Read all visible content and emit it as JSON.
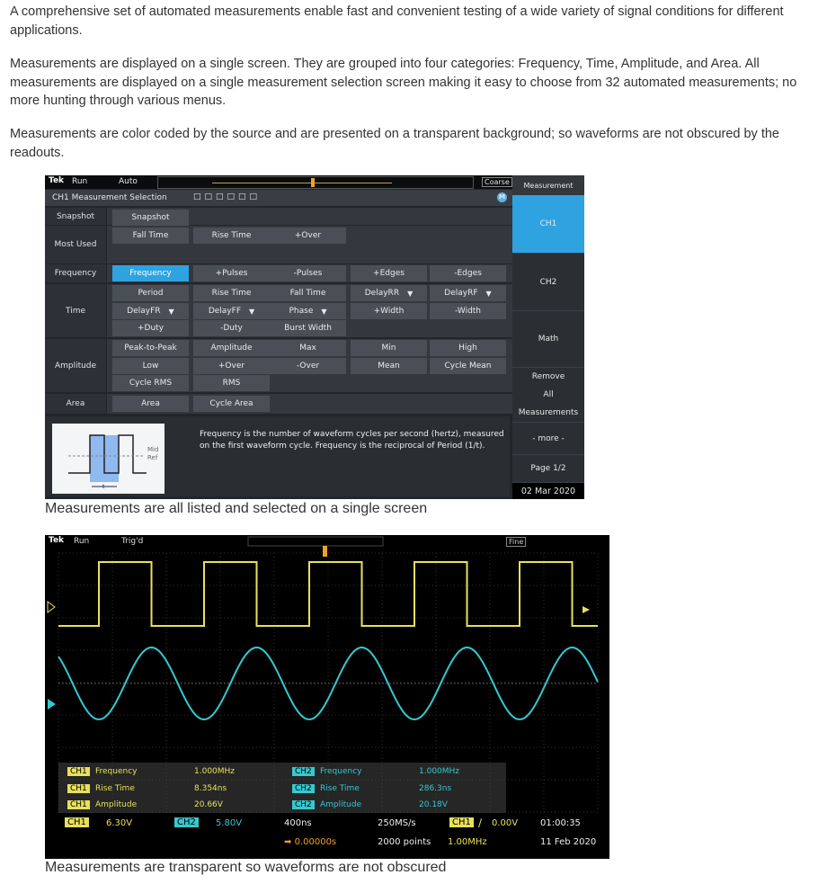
{
  "paragraphs": [
    "A comprehensive set of automated measurements enable fast and convenient testing of a wide variety of signal conditions for different applications.",
    "Measurements are displayed on a single screen. They are grouped into four categories: Frequency, Time, Amplitude, and Area. All measurements are displayed on a single measurement selection screen making it easy to choose from 32 automated measurements; no more hunting through various menus.",
    "Measurements are color coded by the source and are presented on a transparent background; so waveforms are not obscured by the readouts."
  ],
  "screen1": {
    "logo": "Tek",
    "run": "Run",
    "mode": "Auto",
    "coarse": "Coarse",
    "title": "CH1 Measurement Selection",
    "badge": "M",
    "categories": [
      {
        "label": "Snapshot",
        "rows": [
          [
            {
              "label": "Snapshot"
            }
          ]
        ]
      },
      {
        "label": "Most Used",
        "rows": [
          [
            {
              "label": "Fall Time"
            },
            {
              "label": "Rise Time"
            },
            {
              "label": "+Over"
            }
          ]
        ]
      },
      {
        "label": "Frequency",
        "rows": [
          [
            {
              "label": "Frequency",
              "selected": true
            },
            {
              "label": "+Pulses"
            },
            {
              "label": "-Pulses"
            },
            {
              "label": "+Edges"
            },
            {
              "label": "-Edges"
            }
          ]
        ]
      },
      {
        "label": "Time",
        "rows": [
          [
            {
              "label": "Period"
            },
            {
              "label": "Rise Time"
            },
            {
              "label": "Fall Time"
            },
            {
              "label": "DelayRR",
              "dropdown": true
            },
            {
              "label": "DelayRF",
              "dropdown": true
            }
          ],
          [
            {
              "label": "DelayFR",
              "dropdown": true
            },
            {
              "label": "DelayFF",
              "dropdown": true
            },
            {
              "label": "Phase",
              "dropdown": true
            },
            {
              "label": "+Width"
            },
            {
              "label": "-Width"
            }
          ],
          [
            {
              "label": "+Duty"
            },
            {
              "label": "-Duty"
            },
            {
              "label": "Burst Width"
            }
          ]
        ]
      },
      {
        "label": "Amplitude",
        "rows": [
          [
            {
              "label": "Peak-to-Peak"
            },
            {
              "label": "Amplitude"
            },
            {
              "label": "Max"
            },
            {
              "label": "Min"
            },
            {
              "label": "High"
            }
          ],
          [
            {
              "label": "Low"
            },
            {
              "label": "+Over"
            },
            {
              "label": "-Over"
            },
            {
              "label": "Mean"
            },
            {
              "label": "Cycle Mean"
            }
          ],
          [
            {
              "label": "Cycle RMS"
            },
            {
              "label": "RMS"
            }
          ]
        ]
      },
      {
        "label": "Area",
        "rows": [
          [
            {
              "label": "Area"
            },
            {
              "label": "Cycle Area"
            }
          ]
        ]
      }
    ],
    "diagram": {
      "mid": "Mid",
      "ref": "Ref",
      "t": "t"
    },
    "description": "Frequency is the number of waveform cycles per second (hertz), measured on the first waveform cycle. Frequency is the reciprocal of Period (1/t).",
    "side": {
      "header": "Measurement",
      "ch1": "CH1",
      "ch2": "CH2",
      "math": "Math",
      "remove1": "Remove",
      "remove2": "All",
      "remove3": "Measurements",
      "more": "- more -",
      "page": "Page 1/2",
      "date": "02 Mar 2020"
    },
    "accent": "#2ea3e0"
  },
  "caption1": "Measurements are all listed and selected on a single screen",
  "screen2": {
    "logo": "Tek",
    "run": "Run",
    "mode": "Trig'd",
    "fine": "Fine",
    "measurements": [
      {
        "src": "CH1",
        "name": "Frequency",
        "value": "1.000MHz"
      },
      {
        "src": "CH1",
        "name": "Rise Time",
        "value": "8.354ns"
      },
      {
        "src": "CH1",
        "name": "Amplitude",
        "value": "20.66V"
      },
      {
        "src": "CH2",
        "name": "Frequency",
        "value": "1.000MHz"
      },
      {
        "src": "CH2",
        "name": "Rise Time",
        "value": "286.3ns"
      },
      {
        "src": "CH2",
        "name": "Amplitude",
        "value": "20.18V"
      }
    ],
    "ch1_label": "CH1",
    "ch1_scale": "6.30V",
    "ch2_label": "CH2",
    "ch2_scale": "5.80V",
    "timebase": "400ns",
    "delay": "0.00000s",
    "sample_rate": "250MS/s",
    "points": "2000 points",
    "trig_src": "CH1",
    "trig_level": "0.00V",
    "trig_freq": "1.00MHz",
    "time": "01:00:35",
    "date": "11 Feb 2020",
    "colors": {
      "ch1": "#e8e05a",
      "ch2": "#35c9d0",
      "trigger": "#f0a030"
    }
  },
  "caption2": "Measurements are transparent so waveforms are not obscured"
}
